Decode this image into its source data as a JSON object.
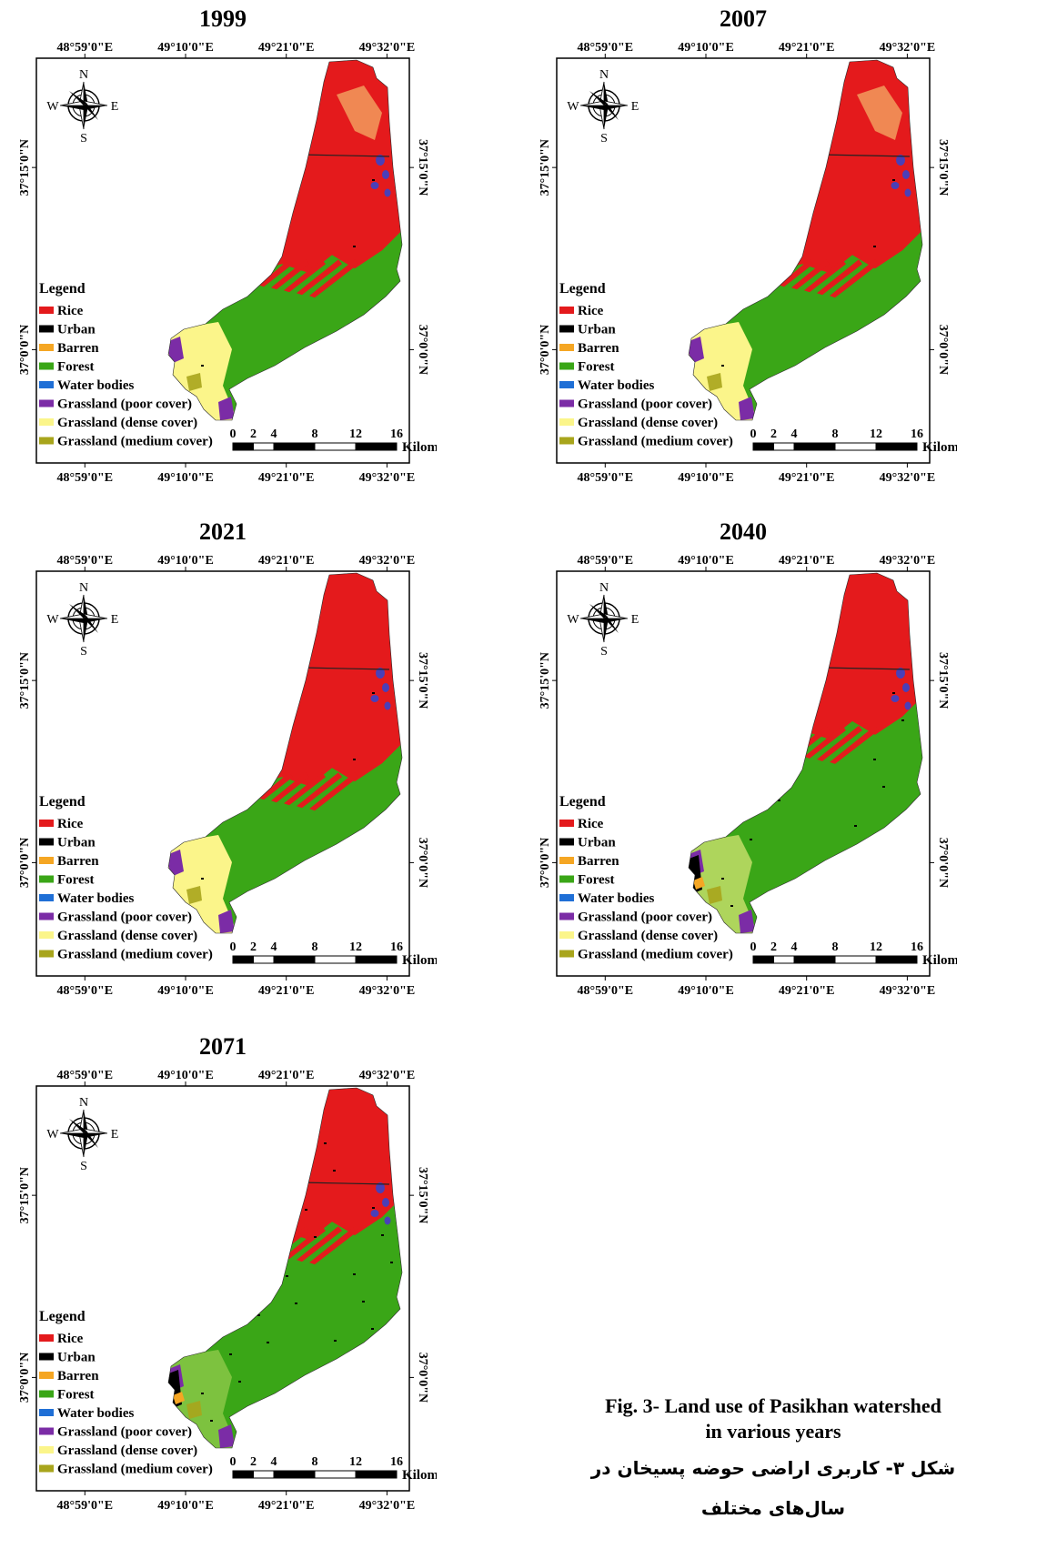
{
  "figure": {
    "caption_en_line1": "Fig. 3- Land use of Pasikhan watershed",
    "caption_en_line2": "in various years",
    "caption_fa_line1": "شکل ۳- کاربری اراضی حوضه پسیخان در",
    "caption_fa_line2": "سال‌های مختلف"
  },
  "axes": {
    "top_labels": [
      "48°59'0\"E",
      "49°10'0\"E",
      "49°21'0\"E",
      "49°32'0\"E"
    ],
    "bottom_labels": [
      "48°59'0\"E",
      "49°10'0\"E",
      "49°21'0\"E",
      "49°32'0\"E"
    ],
    "left_labels": [
      "37°15'0\"N",
      "37°0'0\"N"
    ],
    "right_labels": [
      "37°15'0\"N",
      "37°0'0\"N"
    ]
  },
  "compass": {
    "n": "N",
    "s": "S",
    "e": "E",
    "w": "W",
    "icon": "compass-rose-icon"
  },
  "scalebar": {
    "ticks": [
      "0",
      "2",
      "4",
      "8",
      "12",
      "16"
    ],
    "unit": "Kilometers"
  },
  "legend": {
    "title": "Legend",
    "items": [
      {
        "label": "Rice",
        "color": "#e41a1c"
      },
      {
        "label": "Urban",
        "color": "#000000"
      },
      {
        "label": "Barren",
        "color": "#f5a623"
      },
      {
        "label": "Forest",
        "color": "#3aa617"
      },
      {
        "label": "Water bodies",
        "color": "#1f6fd6"
      },
      {
        "label": "Grassland (poor cover)",
        "color": "#7b2ca6"
      },
      {
        "label": "Grassland (dense cover)",
        "color": "#fbf58a"
      },
      {
        "label": "Grassland (medium cover)",
        "color": "#a8a51c"
      }
    ]
  },
  "maps": [
    {
      "year": "1999",
      "rice_fraction": 0.55,
      "urban_level": "low"
    },
    {
      "year": "2007",
      "rice_fraction": 0.55,
      "urban_level": "low"
    },
    {
      "year": "2021",
      "rice_fraction": 0.55,
      "urban_level": "low"
    },
    {
      "year": "2040",
      "rice_fraction": 0.42,
      "urban_level": "medium"
    },
    {
      "year": "2071",
      "rice_fraction": 0.38,
      "urban_level": "high"
    }
  ]
}
